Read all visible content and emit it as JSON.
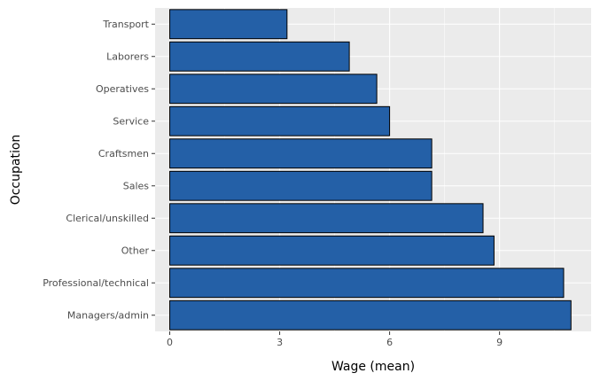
{
  "chart_data": {
    "type": "bar",
    "orientation": "horizontal",
    "categories": [
      "Transport",
      "Laborers",
      "Operatives",
      "Service",
      "Craftsmen",
      "Sales",
      "Clerical/unskilled",
      "Other",
      "Professional/technical",
      "Managers/admin"
    ],
    "values": [
      3.2,
      4.9,
      5.65,
      6.0,
      7.15,
      7.15,
      8.55,
      8.85,
      10.75,
      10.95
    ],
    "xlabel": "Wage (mean)",
    "ylabel": "Occupation",
    "xlim": [
      -0.4,
      11.5
    ],
    "xticks": [
      0,
      3,
      6,
      9
    ],
    "xtick_labels": [
      "0",
      "3",
      "6",
      "9"
    ],
    "grid": true,
    "colors": {
      "bar_fill": "#2460A7",
      "bar_stroke": "#000000",
      "panel_background": "#EBEBEB",
      "grid_major": "#FFFFFF",
      "tick_label": "#4D4D4D"
    }
  }
}
